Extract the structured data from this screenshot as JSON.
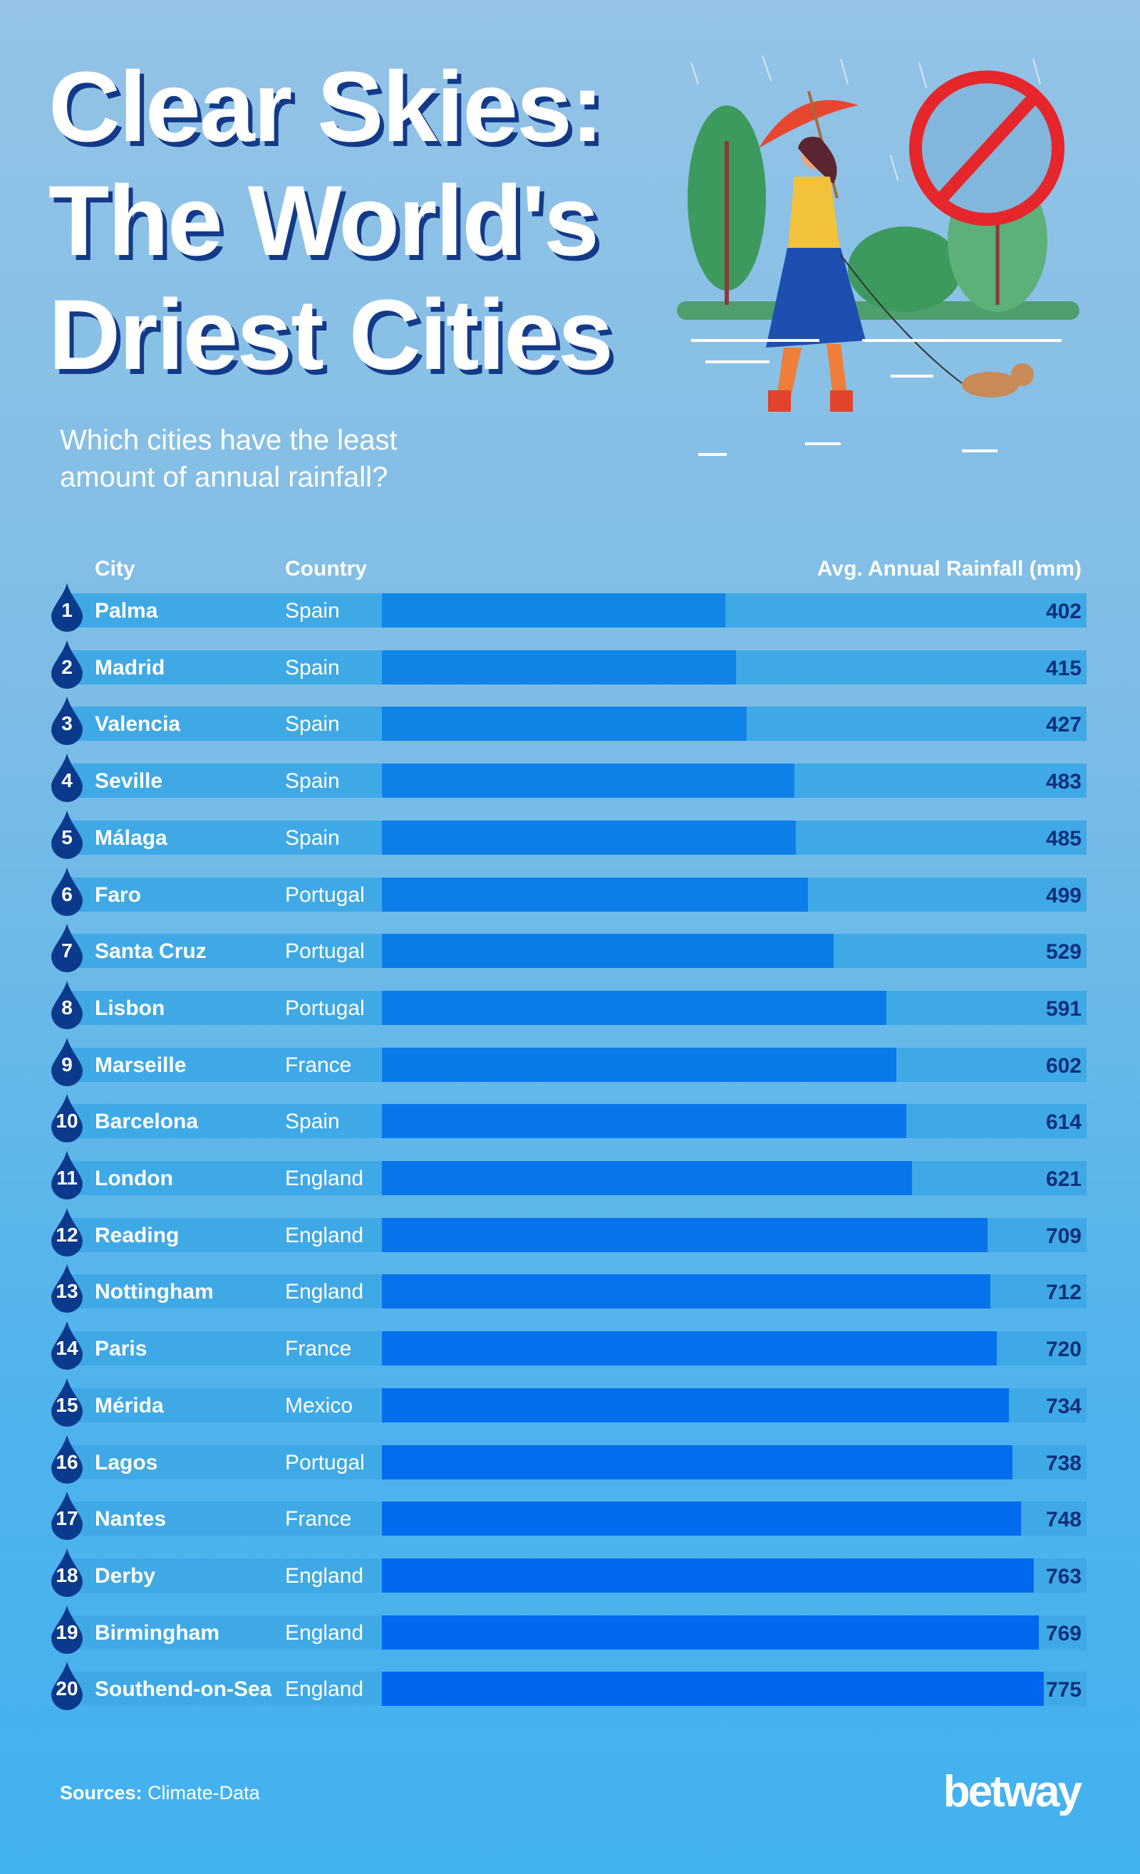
{
  "title_lines": [
    "Clear Skies:",
    "The World's",
    "Driest Cities"
  ],
  "subtitle_lines": [
    "Which cities have the least",
    "amount of annual rainfall?"
  ],
  "headers": {
    "city": "City",
    "country": "Country",
    "rainfall": "Avg. Annual Rainfall (mm)"
  },
  "colors": {
    "row_bg": "#3fa9e6",
    "bar_start": "#1286e6",
    "bar_end": "#0066f0",
    "value_text": "#0d2f7a",
    "drop": "#0b3a8c"
  },
  "chart_data": {
    "type": "bar",
    "orientation": "horizontal",
    "xlabel": "Avg. Annual Rainfall (mm)",
    "xlim": [
      0,
      825
    ],
    "grid": false,
    "ranks": [
      1,
      2,
      3,
      4,
      5,
      6,
      7,
      8,
      9,
      10,
      11,
      12,
      13,
      14,
      15,
      16,
      17,
      18,
      19,
      20
    ],
    "categories": [
      "Palma",
      "Madrid",
      "Valencia",
      "Seville",
      "Málaga",
      "Faro",
      "Santa Cruz",
      "Lisbon",
      "Marseille",
      "Barcelona",
      "London",
      "Reading",
      "Nottingham",
      "Paris",
      "Mérida",
      "Lagos",
      "Nantes",
      "Derby",
      "Birmingham",
      "Southend-on-Sea"
    ],
    "countries": [
      "Spain",
      "Spain",
      "Spain",
      "Spain",
      "Spain",
      "Portugal",
      "Portugal",
      "Portugal",
      "France",
      "Spain",
      "England",
      "England",
      "England",
      "France",
      "Mexico",
      "Portugal",
      "France",
      "England",
      "England",
      "England"
    ],
    "values": [
      402,
      415,
      427,
      483,
      485,
      499,
      529,
      591,
      602,
      614,
      621,
      709,
      712,
      720,
      734,
      738,
      748,
      763,
      769,
      775
    ]
  },
  "footer": {
    "sources_label": "Sources:",
    "sources_value": "Climate-Data",
    "logo": "betway"
  },
  "icons": {
    "illustration": "woman-umbrella-rain-illustration",
    "no_sign": "prohibition-icon",
    "rank": "water-drop-icon"
  }
}
